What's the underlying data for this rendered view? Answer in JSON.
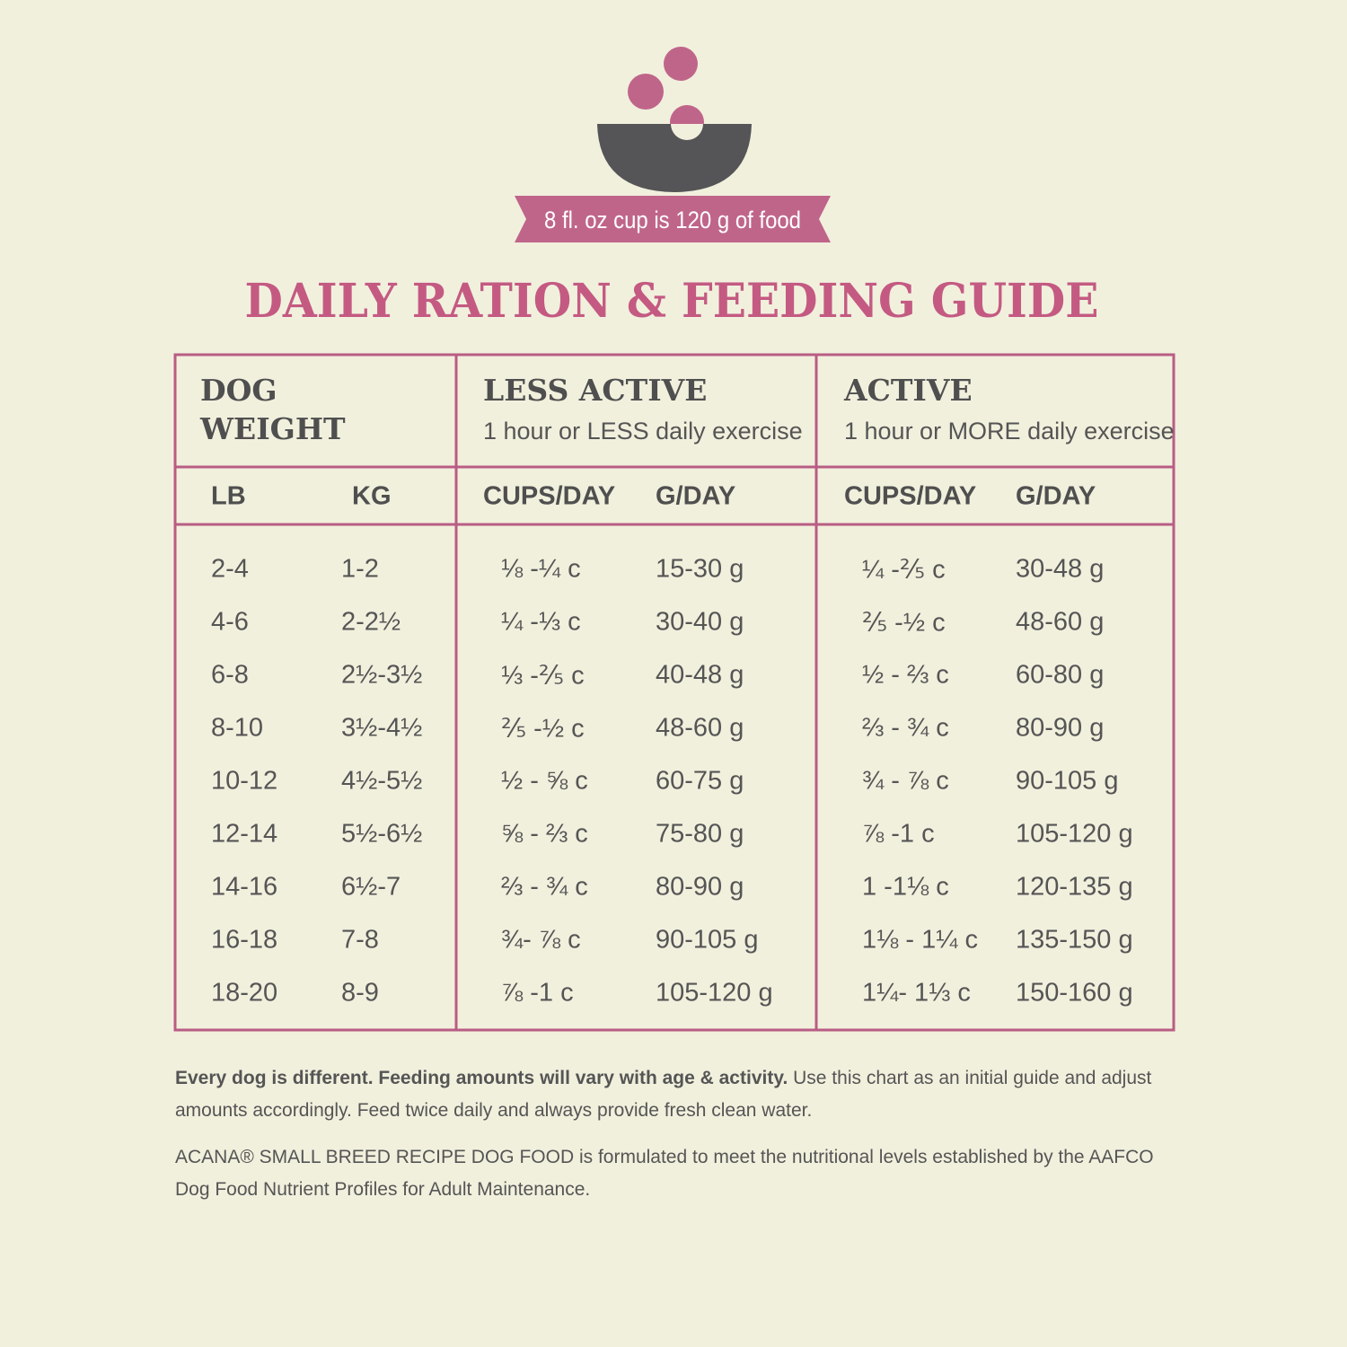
{
  "banner": "8 fl. oz cup is 120 g of food",
  "title": "DAILY RATION & FEEDING GUIDE",
  "table": {
    "groups": [
      {
        "title": "DOG WEIGHT",
        "title_lines": [
          "DOG",
          "WEIGHT"
        ]
      },
      {
        "title": "LESS ACTIVE",
        "subtitle": "1 hour or LESS daily exercise"
      },
      {
        "title": "ACTIVE",
        "subtitle": "1 hour or MORE daily exercise"
      }
    ],
    "columns": [
      "LB",
      "KG",
      "CUPS/DAY",
      "G/DAY",
      "CUPS/DAY",
      "G/DAY"
    ],
    "rows": [
      [
        "2-4",
        "1-2",
        "⅛ -¼ c",
        "15-30 g",
        "¼ -⅖ c",
        "30-48 g"
      ],
      [
        "4-6",
        "2-2½",
        "¼ -⅓ c",
        "30-40 g",
        "⅖ -½ c",
        "48-60 g"
      ],
      [
        "6-8",
        "2½-3½",
        "⅓ -⅖ c",
        "40-48 g",
        "½ - ⅔ c",
        "60-80 g"
      ],
      [
        "8-10",
        "3½-4½",
        "⅖ -½ c",
        "48-60 g",
        "⅔ - ¾ c",
        "80-90 g"
      ],
      [
        "10-12",
        "4½-5½",
        "½ - ⅝ c",
        "60-75 g",
        "¾ - ⅞ c",
        "90-105 g"
      ],
      [
        "12-14",
        "5½-6½",
        "⅝ - ⅔ c",
        "75-80 g",
        "⅞ -1 c",
        "105-120 g"
      ],
      [
        "14-16",
        "6½-7",
        "⅔ - ¾ c",
        "80-90 g",
        "1 -1⅛ c",
        "120-135 g"
      ],
      [
        "16-18",
        "7-8",
        "¾- ⅞ c",
        "90-105 g",
        "1⅛ - 1¼ c",
        "135-150 g"
      ],
      [
        "18-20",
        "8-9",
        "⅞ -1 c",
        "105-120 g",
        "1¼- 1⅓ c",
        "150-160 g"
      ]
    ]
  },
  "notes": [
    {
      "bold": "Every dog is different. Feeding amounts will vary with age & activity.",
      "text": "Use this chart as an initial guide and adjust amounts accordingly. Feed twice daily and always provide fresh clean water."
    },
    {
      "text": "ACANA® SMALL BREED RECIPE DOG FOOD is formulated to meet the nutritional levels established by the AAFCO Dog Food Nutrient Profiles for Adult Maintenance."
    }
  ]
}
